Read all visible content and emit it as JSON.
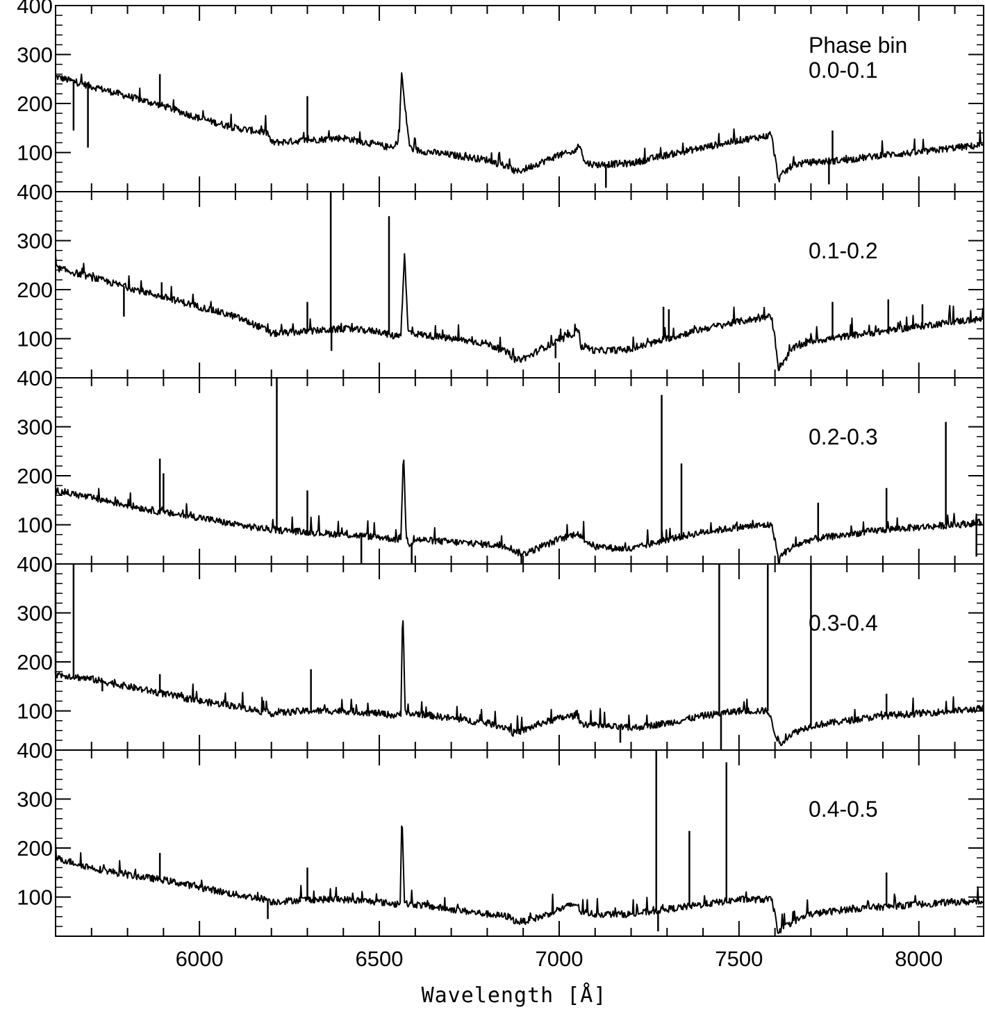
{
  "chart_data": {
    "type": "line",
    "xlabel": "Wavelength [Å]",
    "xlim": [
      5600,
      8180
    ],
    "x_ticks": [
      6000,
      6500,
      7000,
      7500,
      8000
    ],
    "x_tick_labels": [
      "6000",
      "6500",
      "7000",
      "7500",
      "8000"
    ],
    "y_ticks": [
      100,
      200,
      300,
      400
    ],
    "y_tick_labels": [
      "100",
      "200",
      "300",
      "400"
    ],
    "panels": [
      {
        "label_lines": [
          "Phase bin",
          "0.0-0.1"
        ],
        "ylim": [
          20,
          400
        ],
        "series": {
          "x": [
            5600,
            5700,
            5800,
            5900,
            6000,
            6100,
            6190,
            6200,
            6300,
            6400,
            6500,
            6540,
            6555,
            6562,
            6570,
            6585,
            6600,
            6700,
            6800,
            6860,
            6880,
            6900,
            6950,
            7000,
            7040,
            7050,
            7060,
            7070,
            7100,
            7200,
            7300,
            7400,
            7500,
            7590,
            7600,
            7610,
            7620,
            7650,
            7700,
            7800,
            7900,
            8000,
            8100,
            8180
          ],
          "y": [
            255,
            235,
            215,
            195,
            170,
            150,
            140,
            120,
            125,
            130,
            115,
            108,
            130,
            265,
            200,
            110,
            105,
            95,
            85,
            70,
            60,
            65,
            80,
            95,
            100,
            110,
            115,
            80,
            75,
            78,
            95,
            110,
            125,
            135,
            90,
            45,
            55,
            75,
            80,
            85,
            95,
            100,
            110,
            115
          ]
        },
        "lines": [
          {
            "x": 5650,
            "y": 145
          },
          {
            "x": 5690,
            "y": 110
          },
          {
            "x": 5890,
            "y": 260
          },
          {
            "x": 6300,
            "y": 215
          },
          {
            "x": 7130,
            "y": 28
          },
          {
            "x": 7750,
            "y": 35
          },
          {
            "x": 7760,
            "y": 145
          }
        ]
      },
      {
        "label_lines": [
          "0.1-0.2"
        ],
        "ylim": [
          20,
          400
        ],
        "series": {
          "x": [
            5600,
            5700,
            5800,
            5900,
            6000,
            6100,
            6180,
            6200,
            6300,
            6400,
            6500,
            6540,
            6560,
            6570,
            6580,
            6600,
            6700,
            6800,
            6860,
            6880,
            6920,
            6950,
            7000,
            7050,
            7055,
            7060,
            7070,
            7100,
            7200,
            7300,
            7400,
            7500,
            7590,
            7600,
            7610,
            7620,
            7650,
            7700,
            7800,
            7900,
            8000,
            8100,
            8180
          ],
          "y": [
            245,
            225,
            205,
            185,
            165,
            145,
            120,
            110,
            115,
            120,
            115,
            105,
            110,
            275,
            115,
            110,
            100,
            90,
            70,
            55,
            65,
            80,
            95,
            115,
            125,
            80,
            85,
            75,
            78,
            100,
            120,
            135,
            145,
            100,
            40,
            50,
            80,
            95,
            105,
            115,
            125,
            135,
            140
          ]
        },
        "lines": [
          {
            "x": 5790,
            "y": 145
          },
          {
            "x": 5895,
            "y": 215
          },
          {
            "x": 6300,
            "y": 175
          },
          {
            "x": 6365,
            "y": 400
          },
          {
            "x": 6367,
            "y": 75
          },
          {
            "x": 6527,
            "y": 350
          },
          {
            "x": 6990,
            "y": 60
          },
          {
            "x": 7290,
            "y": 165
          },
          {
            "x": 7305,
            "y": 160
          },
          {
            "x": 7760,
            "y": 175
          },
          {
            "x": 7915,
            "y": 180
          },
          {
            "x": 8010,
            "y": 170
          }
        ]
      },
      {
        "label_lines": [
          "0.2-0.3"
        ],
        "ylim": [
          20,
          400
        ],
        "series": {
          "x": [
            5600,
            5700,
            5800,
            5900,
            6000,
            6100,
            6200,
            6300,
            6400,
            6500,
            6550,
            6560,
            6567,
            6575,
            6585,
            6600,
            6700,
            6800,
            6860,
            6880,
            6900,
            6950,
            7000,
            7040,
            7050,
            7060,
            7100,
            7200,
            7300,
            7400,
            7500,
            7590,
            7600,
            7610,
            7620,
            7650,
            7700,
            7800,
            7900,
            8000,
            8100,
            8180
          ],
          "y": [
            170,
            155,
            140,
            125,
            115,
            100,
            90,
            85,
            80,
            75,
            70,
            75,
            250,
            75,
            60,
            70,
            65,
            60,
            55,
            45,
            40,
            55,
            70,
            80,
            85,
            75,
            55,
            50,
            70,
            85,
            95,
            100,
            70,
            25,
            40,
            55,
            70,
            80,
            90,
            95,
            100,
            105
          ]
        },
        "lines": [
          {
            "x": 5890,
            "y": 235
          },
          {
            "x": 5900,
            "y": 205
          },
          {
            "x": 6215,
            "y": 400
          },
          {
            "x": 6300,
            "y": 170
          },
          {
            "x": 6450,
            "y": 20
          },
          {
            "x": 6590,
            "y": 20
          },
          {
            "x": 6895,
            "y": 20
          },
          {
            "x": 7285,
            "y": 365
          },
          {
            "x": 7340,
            "y": 225
          },
          {
            "x": 7720,
            "y": 145
          },
          {
            "x": 7910,
            "y": 175
          },
          {
            "x": 8075,
            "y": 310
          },
          {
            "x": 8160,
            "y": 35
          }
        ]
      },
      {
        "label_lines": [
          "0.3-0.4"
        ],
        "ylim": [
          20,
          400
        ],
        "series": {
          "x": [
            5600,
            5700,
            5800,
            5900,
            6000,
            6100,
            6200,
            6300,
            6400,
            6500,
            6550,
            6560,
            6565,
            6572,
            6580,
            6600,
            6700,
            6800,
            6860,
            6870,
            6900,
            6950,
            7000,
            7040,
            7050,
            7060,
            7100,
            7200,
            7300,
            7400,
            7500,
            7560,
            7580,
            7590,
            7600,
            7615,
            7630,
            7650,
            7700,
            7800,
            7900,
            8000,
            8100,
            8180
          ],
          "y": [
            175,
            165,
            150,
            135,
            120,
            110,
            95,
            100,
            100,
            95,
            90,
            95,
            320,
            100,
            90,
            95,
            85,
            75,
            65,
            55,
            60,
            75,
            85,
            90,
            95,
            75,
            70,
            65,
            75,
            90,
            100,
            100,
            100,
            80,
            55,
            30,
            45,
            55,
            70,
            80,
            90,
            95,
            100,
            105
          ]
        },
        "lines": [
          {
            "x": 5600,
            "y": 400
          },
          {
            "x": 5650,
            "y": 400
          },
          {
            "x": 5730,
            "y": 140
          },
          {
            "x": 5890,
            "y": 175
          },
          {
            "x": 6310,
            "y": 185
          },
          {
            "x": 7170,
            "y": 35
          },
          {
            "x": 7445,
            "y": 400
          },
          {
            "x": 7450,
            "y": 20
          },
          {
            "x": 7580,
            "y": 400
          },
          {
            "x": 7700,
            "y": 400
          },
          {
            "x": 7910,
            "y": 135
          }
        ]
      },
      {
        "label_lines": [
          "0.4-0.5"
        ],
        "ylim": [
          20,
          400
        ],
        "series": {
          "x": [
            5600,
            5700,
            5800,
            5900,
            6000,
            6100,
            6190,
            6200,
            6300,
            6400,
            6500,
            6550,
            6558,
            6563,
            6570,
            6580,
            6600,
            6700,
            6800,
            6860,
            6880,
            6900,
            6950,
            7000,
            7040,
            7050,
            7060,
            7100,
            7200,
            7300,
            7400,
            7500,
            7590,
            7600,
            7610,
            7620,
            7650,
            7700,
            7800,
            7900,
            8000,
            8100,
            8180
          ],
          "y": [
            180,
            160,
            145,
            135,
            120,
            105,
            95,
            90,
            95,
            95,
            90,
            85,
            90,
            275,
            90,
            85,
            85,
            75,
            65,
            60,
            50,
            50,
            60,
            75,
            85,
            85,
            70,
            65,
            65,
            75,
            85,
            95,
            95,
            65,
            25,
            35,
            50,
            65,
            75,
            80,
            85,
            90,
            90
          ]
        },
        "lines": [
          {
            "x": 5890,
            "y": 190
          },
          {
            "x": 6190,
            "y": 55
          },
          {
            "x": 6300,
            "y": 160
          },
          {
            "x": 7270,
            "y": 400
          },
          {
            "x": 7275,
            "y": 30
          },
          {
            "x": 7362,
            "y": 235
          },
          {
            "x": 7465,
            "y": 375
          },
          {
            "x": 7910,
            "y": 150
          }
        ]
      }
    ]
  }
}
